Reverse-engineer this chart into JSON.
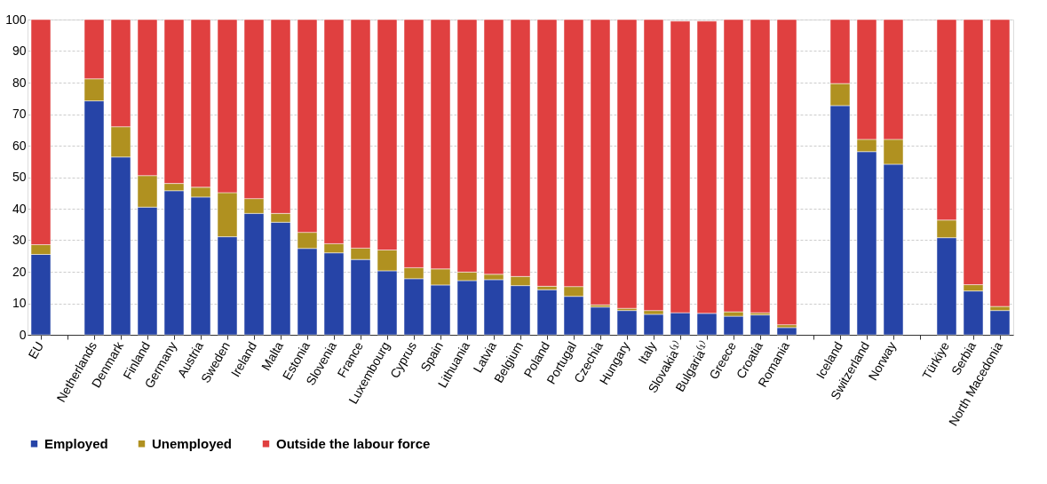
{
  "chart_data": {
    "type": "bar",
    "stacked": true,
    "categories": [
      "EU",
      null,
      "Netherlands",
      "Denmark",
      "Finland",
      "Germany",
      "Austria",
      "Sweden",
      "Ireland",
      "Malta",
      "Estonia",
      "Slovenia",
      "France",
      "Luxembourg",
      "Cyprus",
      "Spain",
      "Lithuania",
      "Latvia",
      "Belgium",
      "Poland",
      "Portugal",
      "Czechia",
      "Hungary",
      "Italy",
      "Slovakia⁽¹⁾",
      "Bulgaria⁽¹⁾",
      "Greece",
      "Croatia",
      "Romania",
      null,
      "Iceland",
      "Switzerland",
      "Norway",
      null,
      "Türkiye",
      "Serbia",
      "North Macedonia"
    ],
    "series": [
      {
        "name": "Employed",
        "color": "#2644a7",
        "values": [
          25.5,
          null,
          74.2,
          56.4,
          40.5,
          45.7,
          43.7,
          31.1,
          38.5,
          35.7,
          27.4,
          26.0,
          23.9,
          20.3,
          17.8,
          15.8,
          17.2,
          17.5,
          15.6,
          14.3,
          12.2,
          8.8,
          7.7,
          6.5,
          7.0,
          6.8,
          5.9,
          6.3,
          2.3,
          null,
          72.7,
          58.1,
          54.1,
          null,
          30.8,
          13.9,
          7.7
        ]
      },
      {
        "name": "Unemployed",
        "color": "#b09120",
        "values": [
          3.1,
          null,
          7.0,
          9.6,
          10.0,
          2.3,
          3.1,
          14.0,
          4.7,
          2.8,
          5.1,
          2.9,
          3.6,
          6.6,
          3.5,
          5.1,
          2.7,
          1.7,
          2.9,
          1.1,
          3.1,
          0.7,
          0.7,
          1.2,
          null,
          null,
          1.4,
          0.7,
          0.9,
          null,
          7.0,
          3.9,
          7.9,
          null,
          5.6,
          2.0,
          1.3
        ]
      },
      {
        "name": "Outside the labour force",
        "color": "#e04040",
        "values": [
          71.4,
          null,
          18.8,
          34.0,
          49.5,
          52.0,
          53.2,
          54.9,
          56.8,
          61.5,
          67.5,
          71.1,
          72.5,
          73.1,
          78.7,
          79.1,
          80.1,
          80.8,
          81.5,
          84.6,
          84.7,
          90.5,
          91.6,
          92.3,
          92.5,
          92.7,
          92.7,
          93.0,
          96.8,
          null,
          20.3,
          38.0,
          38.0,
          null,
          63.6,
          84.1,
          91.0
        ]
      }
    ],
    "ylim": [
      0,
      100
    ],
    "yticks": [
      0,
      10,
      20,
      30,
      40,
      50,
      60,
      70,
      80,
      90,
      100
    ],
    "grid": "y",
    "legend": "bottom"
  }
}
